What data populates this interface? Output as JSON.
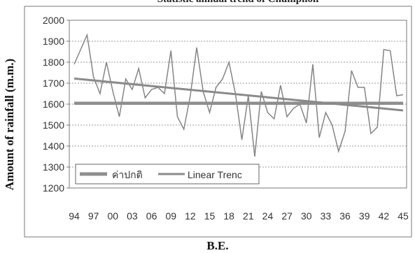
{
  "chart_data": {
    "type": "line",
    "title": "Statistic annual trend of Chumphon",
    "xlabel": "B.E.",
    "ylabel": "Amount of rainfall (m.m.)",
    "ylim": [
      1200,
      2000
    ],
    "yticks": [
      "1200",
      "1300",
      "1400",
      "1500",
      "1600",
      "1700",
      "1800",
      "1900",
      "2000"
    ],
    "xlim": [
      2494,
      2545
    ],
    "xticks": [
      "94",
      "97",
      "00",
      "03",
      "06",
      "09",
      "12",
      "15",
      "18",
      "21",
      "24",
      "27",
      "30",
      "33",
      "36",
      "39",
      "42",
      "45"
    ],
    "grid": true,
    "legend_position": "bottom-left",
    "legend": [
      "ค่าปกติ",
      "Linear Trenc"
    ],
    "colors": {
      "series": "#858585",
      "normal": "#8e8e8e",
      "trend": "#8a8a8a",
      "grid": "#999999",
      "frame": "#7a7a7a"
    },
    "series": [
      {
        "name": "",
        "x": [
          2494,
          2495,
          2496,
          2497,
          2498,
          2499,
          2500,
          2501,
          2502,
          2503,
          2504,
          2505,
          2506,
          2507,
          2508,
          2509,
          2510,
          2511,
          2512,
          2513,
          2514,
          2515,
          2516,
          2517,
          2518,
          2519,
          2520,
          2521,
          2522,
          2523,
          2524,
          2525,
          2526,
          2527,
          2528,
          2529,
          2530,
          2531,
          2532,
          2533,
          2534,
          2535,
          2536,
          2537,
          2538,
          2539,
          2540,
          2541,
          2542,
          2543,
          2544,
          2545
        ],
        "values": [
          1790,
          1860,
          1930,
          1730,
          1650,
          1800,
          1660,
          1540,
          1720,
          1670,
          1770,
          1630,
          1670,
          1680,
          1650,
          1855,
          1540,
          1480,
          1640,
          1870,
          1660,
          1560,
          1680,
          1720,
          1800,
          1650,
          1430,
          1640,
          1350,
          1660,
          1560,
          1530,
          1690,
          1540,
          1580,
          1600,
          1510,
          1790,
          1440,
          1560,
          1500,
          1375,
          1470,
          1760,
          1680,
          1680,
          1460,
          1490,
          1860,
          1855,
          1640,
          1645
        ]
      },
      {
        "name": "ค่าปกติ",
        "x": [
          2494,
          2545
        ],
        "values": [
          1604,
          1604
        ]
      },
      {
        "name": "Linear Trenc",
        "x": [
          2494,
          2545
        ],
        "values": [
          1722,
          1570
        ]
      }
    ]
  }
}
